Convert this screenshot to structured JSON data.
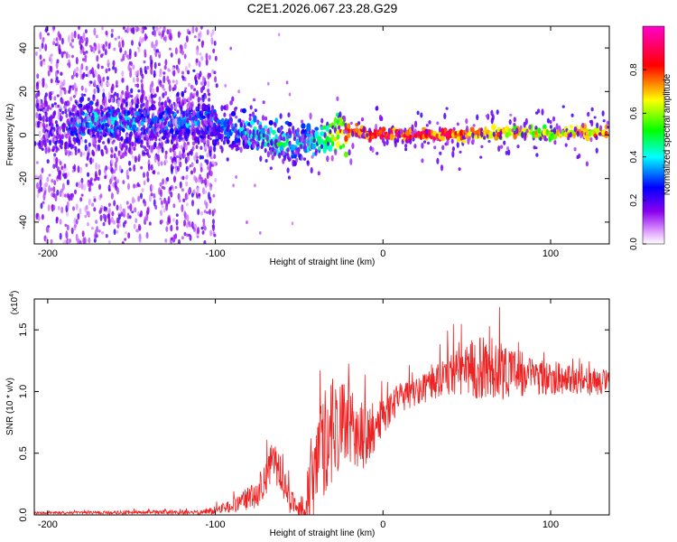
{
  "figure_title": "C2E1.2026.067.23.28.G29",
  "chart_data": [
    {
      "type": "heatmap",
      "name": "spectrogram",
      "xlabel": "Height of straight line (km)",
      "ylabel": "Frequency (Hz)",
      "xlim": [
        -208,
        135
      ],
      "ylim": [
        -50,
        50
      ],
      "xticks": [
        -200,
        -100,
        0,
        100
      ],
      "yticks": [
        -40,
        -20,
        0,
        20,
        40
      ],
      "colorbar": {
        "label": "Normalized spectral amplitude",
        "range": [
          0,
          1
        ],
        "ticks": [
          0.0,
          0.2,
          0.4,
          0.6,
          0.8
        ],
        "colormap": [
          "#ffffff",
          "#cc88ff",
          "#7700dd",
          "#0000ff",
          "#00ffff",
          "#00ff00",
          "#ffff00",
          "#ff0000",
          "#ff00ff"
        ]
      },
      "ridge": {
        "description": "dominant frequency vs height",
        "x": [
          -185,
          -160,
          -140,
          -120,
          -100,
          -85,
          -75,
          -65,
          -55,
          -45,
          -38,
          -30,
          -25,
          -20,
          -10,
          0,
          20,
          40,
          60,
          80,
          100,
          120,
          135
        ],
        "y": [
          7,
          6,
          5,
          6,
          5,
          3,
          0,
          -3,
          -4,
          -4,
          -2,
          0,
          1,
          2,
          1,
          0,
          0,
          0,
          1,
          1,
          1,
          1,
          1.5
        ],
        "amplitude": [
          0.45,
          0.45,
          0.4,
          0.42,
          0.4,
          0.42,
          0.5,
          0.55,
          0.5,
          0.45,
          0.55,
          0.7,
          0.8,
          0.85,
          0.9,
          0.95,
          0.95,
          0.9,
          0.8,
          0.75,
          0.7,
          0.75,
          0.85
        ]
      }
    },
    {
      "type": "line",
      "name": "snr",
      "xlabel": "Height of straight line (km)",
      "ylabel": "SNR (10 * v/v)",
      "scale_label": "(x10",
      "scale_exponent": "4",
      "scale_suffix": ")",
      "xlim": [
        -208,
        135
      ],
      "ylim": [
        0,
        1.75
      ],
      "xticks": [
        -200,
        -100,
        0,
        100
      ],
      "yticks": [
        0.0,
        0.5,
        1.0,
        1.5
      ],
      "ytick_labels": [
        "0.0",
        "0.5",
        "1.0",
        "1.5"
      ],
      "color": "#ee2222",
      "envelope": {
        "x": [
          -208,
          -150,
          -110,
          -95,
          -85,
          -75,
          -70,
          -65,
          -60,
          -55,
          -50,
          -45,
          -40,
          -35,
          -30,
          -25,
          -20,
          -15,
          -10,
          -5,
          0,
          10,
          20,
          30,
          40,
          50,
          60,
          70,
          80,
          90,
          100,
          110,
          120,
          135
        ],
        "y": [
          0.015,
          0.02,
          0.02,
          0.05,
          0.1,
          0.18,
          0.3,
          0.45,
          0.3,
          0.1,
          0.05,
          0.12,
          0.35,
          0.6,
          0.7,
          0.75,
          0.7,
          0.68,
          0.6,
          0.7,
          0.8,
          0.95,
          1.0,
          1.08,
          1.15,
          1.18,
          1.2,
          1.18,
          1.15,
          1.12,
          1.12,
          1.1,
          1.08,
          1.08
        ],
        "noise": [
          0.01,
          0.015,
          0.02,
          0.04,
          0.08,
          0.12,
          0.15,
          0.18,
          0.15,
          0.1,
          0.08,
          0.25,
          0.4,
          0.45,
          0.45,
          0.35,
          0.3,
          0.3,
          0.25,
          0.2,
          0.15,
          0.12,
          0.12,
          0.14,
          0.18,
          0.22,
          0.28,
          0.25,
          0.2,
          0.15,
          0.15,
          0.12,
          0.12,
          0.1
        ]
      }
    }
  ]
}
